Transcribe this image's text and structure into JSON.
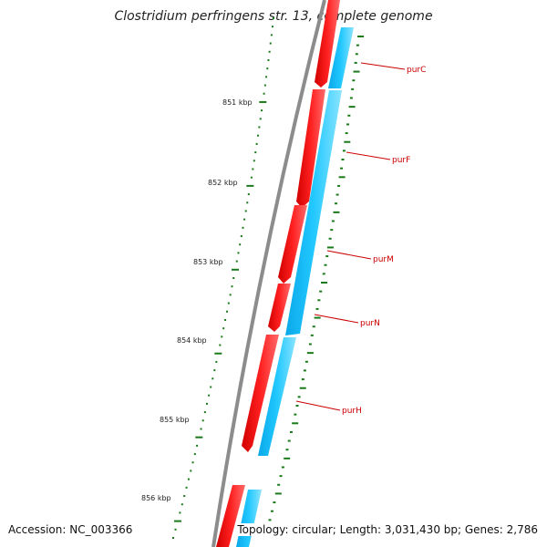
{
  "title": "Clostridium perfringens str. 13, complete genome",
  "footer": {
    "accession": "Accession: NC_003366",
    "summary": "Topology: circular; Length: 3,031,430 bp; Genes: 2,786"
  },
  "colors": {
    "backbone": "#8c8c8c",
    "forward_strand": "#ff0000",
    "reverse_strand": "#1ec8ff",
    "gc_skew": "#1a7a1a",
    "gene_label": "#cc0000"
  },
  "scale_marks": [
    "851 kbp",
    "852 kbp",
    "853 kbp",
    "854 kbp",
    "855 kbp",
    "856 kbp"
  ],
  "genes": [
    "purC",
    "purF",
    "purM",
    "purN",
    "purH"
  ]
}
